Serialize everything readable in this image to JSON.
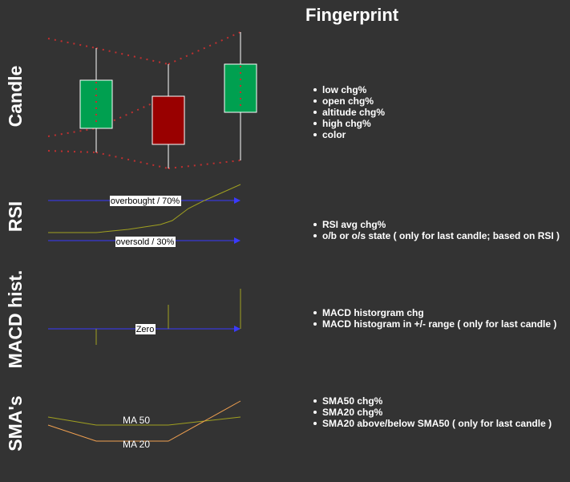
{
  "title": "Fingerprint",
  "colors": {
    "background": "#333333",
    "bull": "#00a050",
    "bear": "#990000",
    "arrow": "#3a3aff",
    "olive": "#a0a020",
    "orange": "#f0a050",
    "dots": "#c03030"
  },
  "sections": [
    {
      "label": "Candle",
      "bullets": [
        "low chg%",
        "open chg%",
        "altitude chg%",
        "high chg%",
        "color"
      ]
    },
    {
      "label": "RSI",
      "bullets": [
        "RSI avg chg%",
        "o/b or o/s state ( only for last candle; based on RSI )"
      ],
      "overbought_label": "overbought / 70%",
      "oversold_label": "oversold / 30%"
    },
    {
      "label": "MACD hist.",
      "bullets": [
        "MACD historgram chg",
        "MACD histogram in +/- range ( only for last candle )"
      ],
      "zero_label": "Zero"
    },
    {
      "label": "SMA's",
      "bullets": [
        "SMA50 chg%",
        "SMA20 chg%",
        "SMA20  above/below SMA50 ( only for last candle )"
      ],
      "ma50_label": "MA 50",
      "ma20_label": "MA 20"
    }
  ]
}
